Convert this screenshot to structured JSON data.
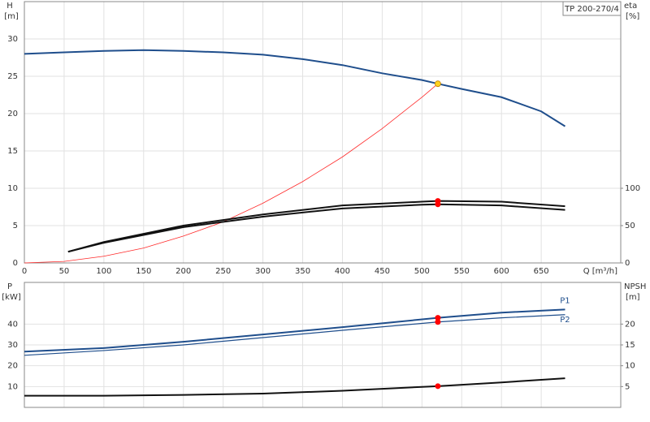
{
  "chart_data": [
    {
      "type": "line",
      "title": "TP 200-270/4",
      "ylabel": "H",
      "yunit": "[m]",
      "y2label": "eta",
      "y2unit": "[%]",
      "xlabel": "Q [m³/h]",
      "xlim": [
        0,
        750
      ],
      "xticks": [
        0,
        50,
        100,
        150,
        200,
        250,
        300,
        350,
        400,
        450,
        500,
        550,
        600,
        650
      ],
      "ylim": [
        0,
        35
      ],
      "yticks": [
        0,
        5,
        10,
        15,
        20,
        25,
        30
      ],
      "y2lim": [
        0,
        350
      ],
      "y2ticks": [
        0,
        50,
        100
      ],
      "grid": true,
      "series": [
        {
          "color": "#1f4e8c",
          "width": 2,
          "x": [
            0,
            50,
            100,
            150,
            200,
            250,
            300,
            350,
            400,
            450,
            500,
            520,
            550,
            600,
            650,
            680
          ],
          "values": [
            28,
            28.2,
            28.4,
            28.5,
            28.4,
            28.2,
            27.9,
            27.3,
            26.5,
            25.4,
            24.5,
            24,
            23.3,
            22.2,
            20.3,
            18.3
          ]
        },
        {
          "color": "#ff2a2a",
          "width": 0.8,
          "x": [
            0,
            50,
            100,
            150,
            200,
            250,
            300,
            350,
            400,
            450,
            500,
            520
          ],
          "values": [
            0,
            0.2,
            0.9,
            2,
            3.6,
            5.5,
            8,
            10.9,
            14.2,
            18,
            22.2,
            24
          ]
        },
        {
          "color": "#111111",
          "width": 2,
          "axis": "y2",
          "x": [
            55,
            100,
            200,
            300,
            400,
            500,
            520,
            600,
            680
          ],
          "values": [
            15,
            28,
            50,
            65,
            77,
            82,
            83,
            82,
            76
          ]
        },
        {
          "color": "#111111",
          "width": 2,
          "axis": "y2",
          "x": [
            55,
            100,
            200,
            300,
            400,
            500,
            520,
            600,
            680
          ],
          "values": [
            15,
            27,
            48,
            62,
            73,
            78,
            78.5,
            77,
            71
          ]
        },
        {
          "style": "dots",
          "color": "#ffd21f",
          "x": [
            520
          ],
          "values": [
            24
          ]
        },
        {
          "style": "dots",
          "color": "#ff0000",
          "axis": "y2",
          "x": [
            520,
            520
          ],
          "values": [
            83,
            78.5
          ]
        }
      ]
    },
    {
      "type": "line",
      "ylabel": "P",
      "yunit": "[kW]",
      "y2label": "NPSH",
      "y2unit": "[m]",
      "xlim": [
        0,
        750
      ],
      "xticks": [
        0,
        50,
        100,
        150,
        200,
        250,
        300,
        350,
        400,
        450,
        500,
        550,
        600,
        650
      ],
      "ylim": [
        0,
        60
      ],
      "yticks": [
        10,
        20,
        30,
        40
      ],
      "y2lim": [
        0,
        30
      ],
      "y2ticks": [
        5,
        10,
        15,
        20
      ],
      "grid": true,
      "series": [
        {
          "name": "P1",
          "color": "#1f4e8c",
          "width": 2,
          "x": [
            0,
            100,
            200,
            300,
            400,
            520,
            600,
            680
          ],
          "values": [
            26.8,
            28.5,
            31.5,
            35,
            38.5,
            43,
            45.5,
            47
          ]
        },
        {
          "name": "P2",
          "color": "#1f4e8c",
          "width": 1.2,
          "x": [
            0,
            100,
            200,
            300,
            400,
            520,
            600,
            680
          ],
          "values": [
            25,
            27.3,
            30,
            33.5,
            37,
            41,
            43,
            44.5
          ]
        },
        {
          "color": "#111111",
          "width": 2,
          "axis": "y2",
          "x": [
            0,
            100,
            200,
            300,
            400,
            520,
            600,
            680
          ],
          "values": [
            2.8,
            2.8,
            3,
            3.3,
            4,
            5.1,
            6,
            7
          ]
        },
        {
          "style": "dots",
          "color": "#ff0000",
          "x": [
            520,
            520
          ],
          "values": [
            43,
            41
          ]
        },
        {
          "style": "dots",
          "color": "#ff0000",
          "axis": "y2",
          "x": [
            520
          ],
          "values": [
            5.1
          ]
        }
      ]
    }
  ]
}
